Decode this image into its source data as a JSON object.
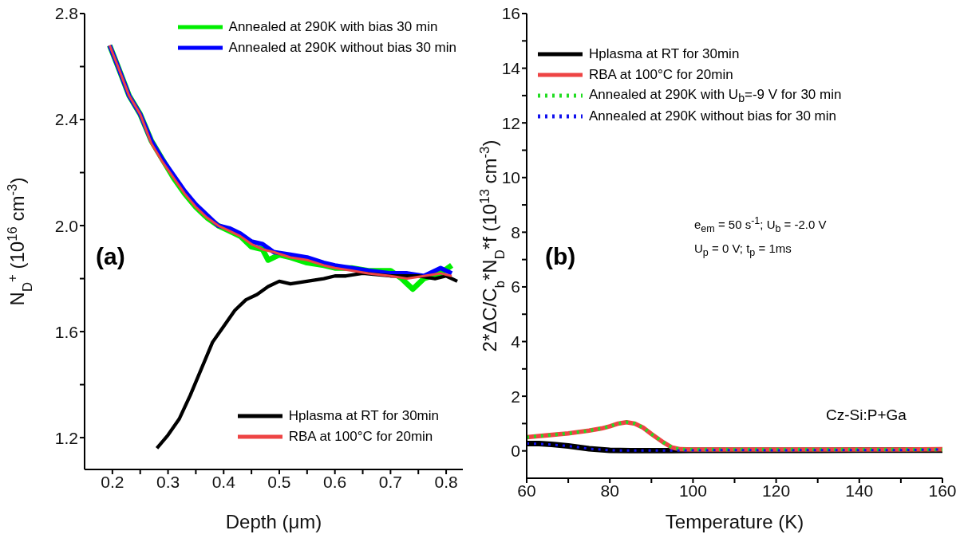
{
  "chart_data": [
    {
      "type": "line",
      "xlabel": "Depth (μm)",
      "ylabel": "N$_{D}$$^{+}$ (10$^{16}$ cm$^{-3}$)",
      "xlim": [
        0.15,
        0.83
      ],
      "ylim": [
        1.08,
        2.8
      ],
      "xticks": [
        0.2,
        {
          "value": 0.25,
          "label": null
        },
        0.3,
        {
          "value": 0.35,
          "label": null
        },
        0.4,
        {
          "value": 0.45,
          "label": null
        },
        0.5,
        {
          "value": 0.55,
          "label": null
        },
        0.6,
        {
          "value": 0.65,
          "label": null
        },
        0.7,
        {
          "value": 0.75,
          "label": null
        },
        0.8
      ],
      "yticks": [
        1.2,
        {
          "value": 1.4,
          "label": null
        },
        1.6,
        {
          "value": 1.8,
          "label": null
        },
        {
          "value": 2,
          "label": "2.0"
        },
        {
          "value": 2.2,
          "label": null
        },
        2.4,
        {
          "value": 2.6,
          "label": null
        },
        2.8
      ],
      "grid": false,
      "legend": "right",
      "line_style": "solid",
      "marker": "none",
      "annotations": [
        "(a)"
      ],
      "series": [
        {
          "name": "Annealed at 290K with bias 30 min",
          "color": "#00ee00",
          "x": [
            0.195,
            0.21,
            0.23,
            0.25,
            0.27,
            0.29,
            0.31,
            0.33,
            0.35,
            0.37,
            0.39,
            0.41,
            0.43,
            0.45,
            0.47,
            0.48,
            0.5,
            0.52,
            0.55,
            0.58,
            0.6,
            0.63,
            0.66,
            0.7,
            0.72,
            0.74,
            0.76,
            0.79,
            0.81
          ],
          "values": [
            2.68,
            2.6,
            2.49,
            2.42,
            2.32,
            2.25,
            2.18,
            2.12,
            2.07,
            2.03,
            2.0,
            1.98,
            1.96,
            1.92,
            1.91,
            1.87,
            1.89,
            1.88,
            1.86,
            1.85,
            1.84,
            1.84,
            1.83,
            1.83,
            1.8,
            1.76,
            1.8,
            1.82,
            1.85
          ]
        },
        {
          "name": "Annealed at 290K without bias 30 min",
          "color": "#0000ff",
          "x": [
            0.195,
            0.21,
            0.23,
            0.25,
            0.27,
            0.29,
            0.31,
            0.33,
            0.35,
            0.37,
            0.39,
            0.41,
            0.43,
            0.45,
            0.47,
            0.49,
            0.52,
            0.55,
            0.58,
            0.6,
            0.63,
            0.66,
            0.7,
            0.73,
            0.76,
            0.79,
            0.81
          ],
          "values": [
            2.68,
            2.6,
            2.49,
            2.42,
            2.32,
            2.25,
            2.19,
            2.13,
            2.08,
            2.04,
            2.0,
            1.99,
            1.97,
            1.94,
            1.93,
            1.9,
            1.89,
            1.88,
            1.86,
            1.85,
            1.84,
            1.83,
            1.82,
            1.82,
            1.81,
            1.84,
            1.82
          ]
        },
        {
          "name": "Hplasma at RT for 30min",
          "color": "#000000",
          "x": [
            0.28,
            0.3,
            0.32,
            0.34,
            0.36,
            0.38,
            0.4,
            0.42,
            0.44,
            0.46,
            0.48,
            0.5,
            0.52,
            0.55,
            0.58,
            0.6,
            0.62,
            0.65,
            0.7,
            0.75,
            0.78,
            0.8,
            0.82
          ],
          "values": [
            1.16,
            1.21,
            1.27,
            1.36,
            1.46,
            1.56,
            1.62,
            1.68,
            1.72,
            1.74,
            1.77,
            1.79,
            1.78,
            1.79,
            1.8,
            1.81,
            1.81,
            1.82,
            1.81,
            1.81,
            1.8,
            1.81,
            1.79
          ]
        },
        {
          "name": "RBA at 100°C for 20min",
          "color": "#ee4444",
          "x": [
            0.195,
            0.21,
            0.23,
            0.25,
            0.27,
            0.29,
            0.31,
            0.33,
            0.35,
            0.37,
            0.39,
            0.41,
            0.43,
            0.45,
            0.47,
            0.49,
            0.52,
            0.55,
            0.58,
            0.6,
            0.63,
            0.66,
            0.7,
            0.73,
            0.76,
            0.79,
            0.81
          ],
          "values": [
            2.68,
            2.6,
            2.49,
            2.42,
            2.31,
            2.24,
            2.18,
            2.12,
            2.07,
            2.03,
            2.0,
            1.98,
            1.96,
            1.93,
            1.91,
            1.9,
            1.88,
            1.87,
            1.85,
            1.84,
            1.83,
            1.82,
            1.81,
            1.8,
            1.81,
            1.82,
            1.81
          ]
        }
      ]
    },
    {
      "type": "line",
      "xlabel": "Temperature (K)",
      "ylabel": "2*ΔC/C$_{b}$*N$_{D}$*f (10$^{13}$ cm$^{-3}$)",
      "xlim": [
        60,
        160
      ],
      "ylim": [
        -1,
        16
      ],
      "xticks": [
        60,
        {
          "value": 70,
          "label": null
        },
        80,
        {
          "value": 90,
          "label": null
        },
        100,
        {
          "value": 110,
          "label": null
        },
        120,
        {
          "value": 130,
          "label": null
        },
        140,
        {
          "value": 150,
          "label": null
        },
        160
      ],
      "yticks": [
        0,
        {
          "value": 1,
          "label": null
        },
        2,
        {
          "value": 3,
          "label": null
        },
        4,
        {
          "value": 5,
          "label": null
        },
        6,
        {
          "value": 7,
          "label": null
        },
        8,
        {
          "value": 9,
          "label": null
        },
        10,
        {
          "value": 11,
          "label": null
        },
        12,
        {
          "value": 13,
          "label": null
        },
        14,
        {
          "value": 15,
          "label": null
        },
        16
      ],
      "grid": false,
      "legend": "top left",
      "marker": "none",
      "annotations": [
        "(b)",
        "e$_{em}$ = 50 s$^{-1}$; U$_{b}$ = -2.0 V",
        "U$_{p}$ = 0 V; t$_{p}$ = 1ms",
        "Cz-Si:P+Ga"
      ],
      "series": [
        {
          "name": "Hplasma at RT for 30min",
          "color": "#000000",
          "line_style": "solid",
          "x": [
            60,
            63,
            66,
            70,
            75,
            80,
            85,
            90,
            95,
            100,
            110,
            120,
            130,
            140,
            150,
            160
          ],
          "values": [
            0.27,
            0.27,
            0.24,
            0.18,
            0.08,
            0.02,
            0.01,
            0.01,
            0.01,
            0.02,
            0.02,
            0.02,
            0.02,
            0.03,
            0.03,
            0.03
          ]
        },
        {
          "name": "RBA at 100°C for 20min",
          "color": "#ee4444",
          "line_style": "solid",
          "x": [
            60,
            65,
            70,
            75,
            78,
            80,
            82,
            84,
            86,
            88,
            90,
            93,
            95,
            97,
            100,
            110,
            120,
            130,
            140,
            150,
            160
          ],
          "values": [
            0.5,
            0.57,
            0.64,
            0.74,
            0.82,
            0.9,
            1.0,
            1.05,
            1.0,
            0.85,
            0.62,
            0.3,
            0.12,
            0.06,
            0.05,
            0.05,
            0.05,
            0.05,
            0.05,
            0.05,
            0.06
          ]
        },
        {
          "name": "Annealed at 290K with U$_{b}$=-9 V for 30 min",
          "color": "#22dd22",
          "line_style": "dotted",
          "x": [
            60,
            65,
            70,
            75,
            78,
            80,
            82,
            84,
            86,
            88,
            90,
            93,
            95,
            97,
            100,
            110,
            120,
            130,
            140,
            150,
            160
          ],
          "values": [
            0.5,
            0.57,
            0.64,
            0.74,
            0.82,
            0.9,
            1.0,
            1.05,
            1.0,
            0.85,
            0.62,
            0.3,
            0.12,
            0.06,
            0.05,
            0.05,
            0.05,
            0.05,
            0.05,
            0.05,
            0.05
          ]
        },
        {
          "name": "Annealed at 290K without bias for 30 min",
          "color": "#1111ee",
          "line_style": "dotted",
          "x": [
            60,
            63,
            66,
            70,
            75,
            80,
            85,
            90,
            95,
            100,
            110,
            120,
            130,
            140,
            150,
            160
          ],
          "values": [
            0.27,
            0.26,
            0.23,
            0.18,
            0.08,
            0.02,
            0.01,
            0.01,
            0.01,
            0.02,
            0.03,
            0.02,
            0.03,
            0.03,
            0.03,
            0.05
          ]
        }
      ]
    }
  ]
}
